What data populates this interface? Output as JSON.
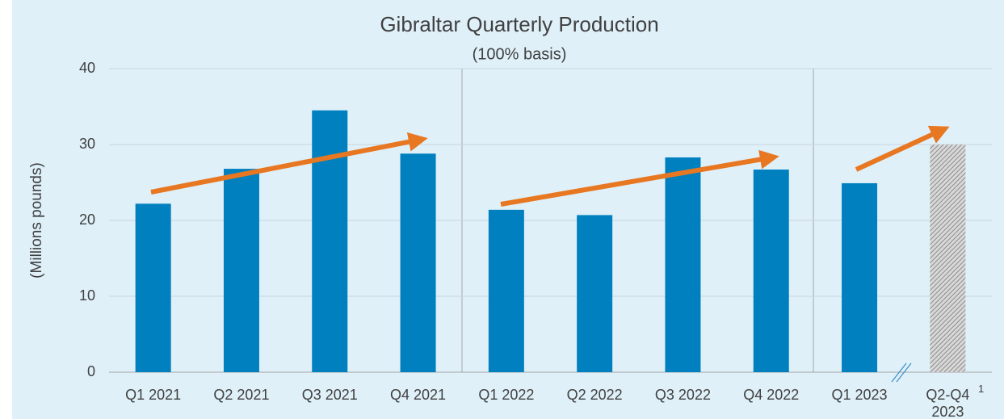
{
  "chart_data": {
    "type": "bar",
    "title": "Gibraltar Quarterly Production",
    "subtitle": "(100% basis)",
    "y_label": "(Millions pounds)",
    "categories": [
      "Q1 2021",
      "Q2 2021",
      "Q3 2021",
      "Q4 2021",
      "Q1 2022",
      "Q2 2022",
      "Q3 2022",
      "Q4 2022",
      "Q1 2023",
      "Q2-Q4 2023"
    ],
    "values": [
      22.2,
      26.8,
      34.5,
      28.8,
      21.4,
      20.7,
      28.3,
      26.7,
      24.9,
      30
    ],
    "styles": [
      "solid",
      "solid",
      "solid",
      "solid",
      "solid",
      "solid",
      "solid",
      "solid",
      "solid",
      "hatched"
    ],
    "color": "#0080bf",
    "hatch_color": "#8c8c8c",
    "footnote_marker": "1",
    "ylim": [
      0,
      40
    ],
    "yticks": [
      0,
      10,
      20,
      30,
      40
    ],
    "grid": true
  }
}
